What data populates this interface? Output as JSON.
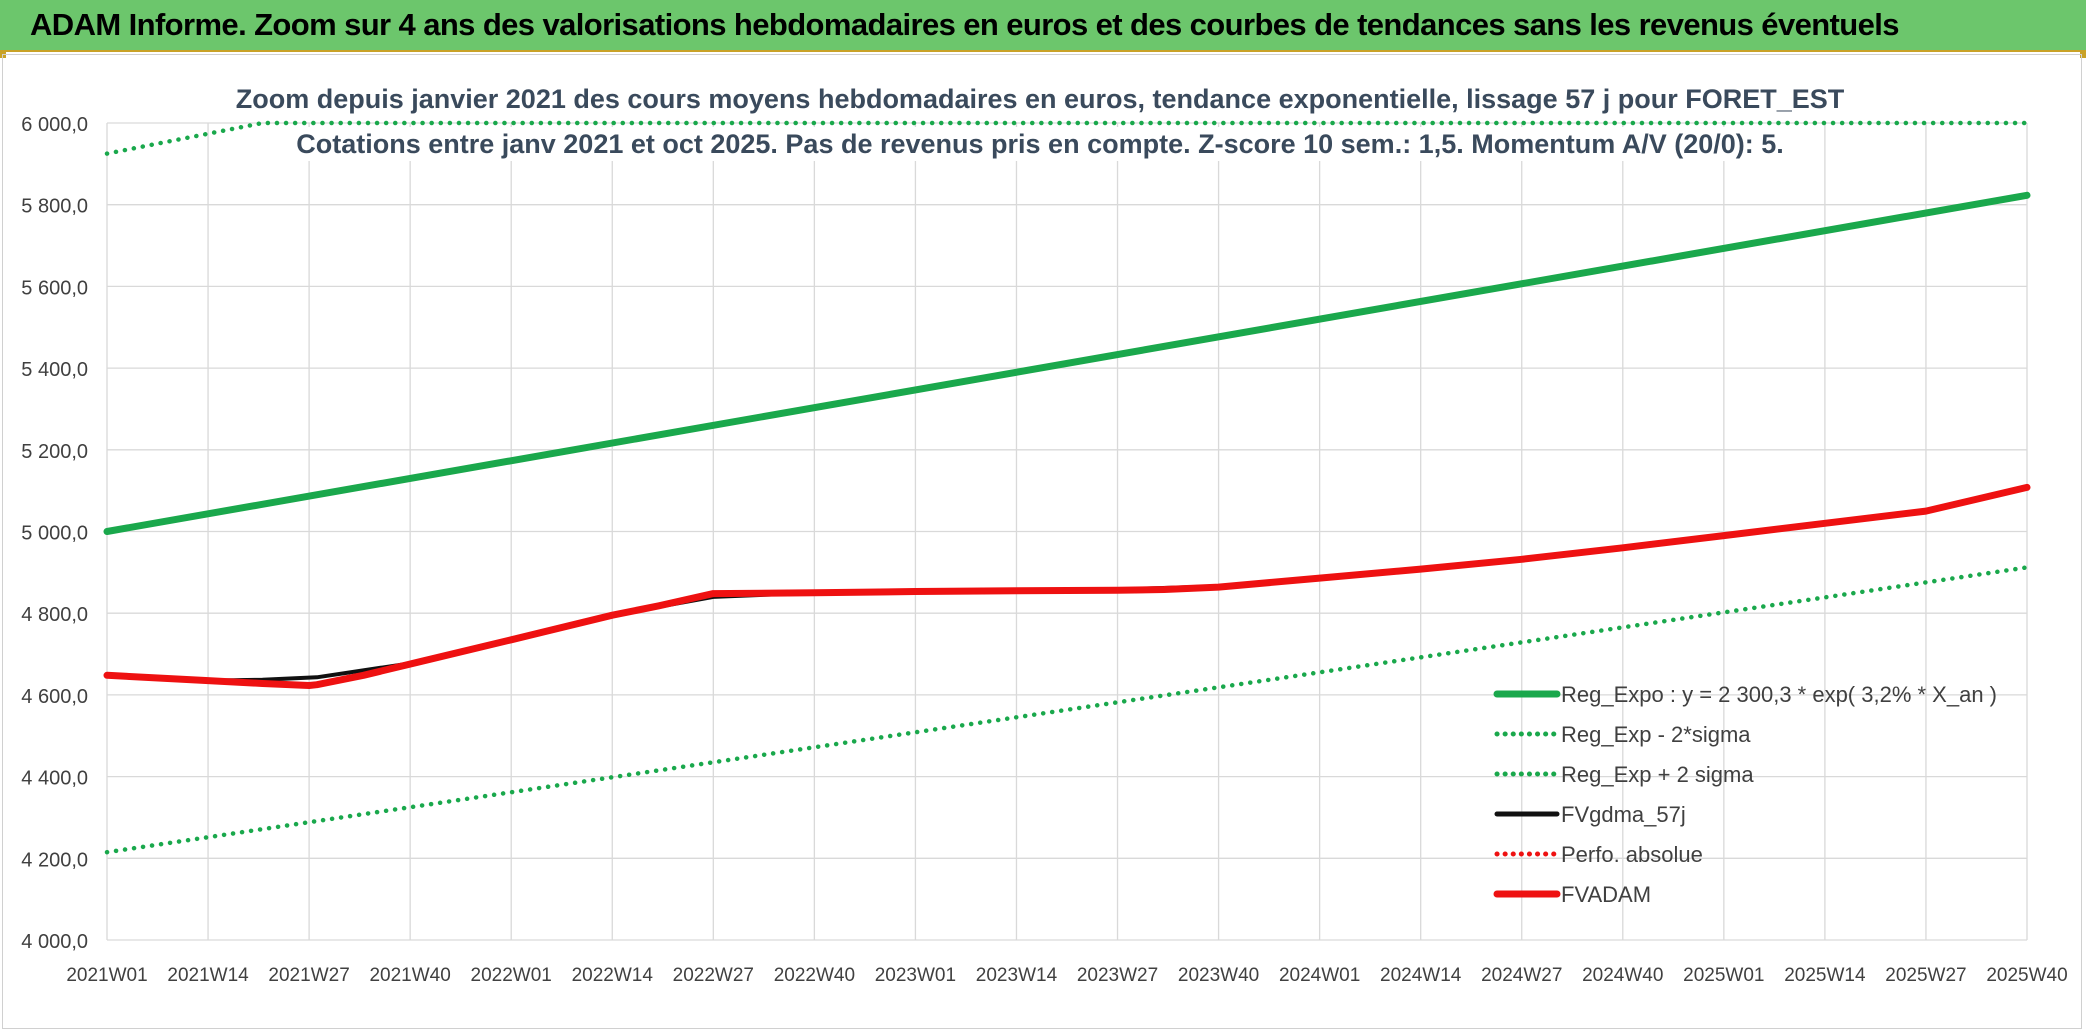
{
  "banner": {
    "title": "ADAM Informe. Zoom sur 4 ans des valorisations hebdomadaires en euros et des courbes de tendances sans les revenus éventuels"
  },
  "colors": {
    "banner_bg": "#6cc66c",
    "green": "#1aa84c",
    "red": "#ee1111",
    "black": "#111111",
    "title_text": "#3a4a5c",
    "grid": "#d9d9d9"
  },
  "chart_data": {
    "type": "line",
    "title_line1": "Zoom depuis janvier 2021 des cours moyens hebdomadaires en euros, tendance exponentielle, lissage 57 j pour FORET_EST",
    "title_line2": "Cotations entre janv 2021 et oct 2025. Pas de revenus pris en compte. Z-score 10 sem.: 1,5. Momentum A/V (20/0): 5.",
    "x_tick_labels": [
      "2021W01",
      "2021W14",
      "2021W27",
      "2021W40",
      "2022W01",
      "2022W14",
      "2022W27",
      "2022W40",
      "2023W01",
      "2023W14",
      "2023W27",
      "2023W40",
      "2024W01",
      "2024W14",
      "2024W27",
      "2024W40",
      "2025W01",
      "2025W14",
      "2025W27",
      "2025W40"
    ],
    "y_tick_labels": [
      "4 000,0",
      "4 200,0",
      "4 400,0",
      "4 600,0",
      "4 800,0",
      "5 000,0",
      "5 200,0",
      "5 400,0",
      "5 600,0",
      "5 800,0",
      "6 000,0"
    ],
    "ylim": [
      4000,
      6000
    ],
    "x_range": [
      0,
      247
    ],
    "grid": true,
    "legend_position": "bottom-right",
    "series": [
      {
        "name": "Reg_Expo : y = 2 300,3 * exp( 3,2% *  X_an )",
        "style": "solid-thick",
        "color": "#1aa84c",
        "points": [
          [
            0,
            5000
          ],
          [
            247,
            5823
          ]
        ]
      },
      {
        "name": "Reg_Exp - 2*sigma",
        "style": "dotted",
        "color": "#1aa84c",
        "points": [
          [
            0,
            4215
          ],
          [
            247,
            4912
          ]
        ]
      },
      {
        "name": "Reg_Exp + 2 sigma",
        "style": "dotted",
        "color": "#1aa84c",
        "points": [
          [
            0,
            5925
          ],
          [
            20,
            6000
          ],
          [
            247,
            6000
          ]
        ]
      },
      {
        "name": "FVgdma_57j",
        "style": "solid",
        "color": "#111111",
        "points": [
          [
            0,
            4648
          ],
          [
            13,
            4635
          ],
          [
            20,
            4637
          ],
          [
            27,
            4643
          ],
          [
            40,
            4680
          ],
          [
            52,
            4735
          ],
          [
            65,
            4795
          ],
          [
            78,
            4840
          ],
          [
            91,
            4850
          ],
          [
            104,
            4853
          ],
          [
            117,
            4855
          ],
          [
            130,
            4858
          ],
          [
            143,
            4866
          ],
          [
            156,
            4886
          ],
          [
            169,
            4908
          ],
          [
            182,
            4932
          ],
          [
            195,
            4960
          ],
          [
            208,
            4990
          ],
          [
            221,
            5020
          ],
          [
            234,
            5050
          ],
          [
            247,
            5105
          ]
        ]
      },
      {
        "name": "Perfo. absolue",
        "style": "dotted",
        "color": "#ee1111",
        "points": []
      },
      {
        "name": "FVADAM",
        "style": "solid-thick",
        "color": "#ee1111",
        "points": [
          [
            0,
            4648
          ],
          [
            13,
            4635
          ],
          [
            20,
            4628
          ],
          [
            26,
            4623
          ],
          [
            27,
            4625
          ],
          [
            33,
            4648
          ],
          [
            40,
            4680
          ],
          [
            52,
            4735
          ],
          [
            65,
            4795
          ],
          [
            71,
            4818
          ],
          [
            78,
            4848
          ],
          [
            91,
            4850
          ],
          [
            104,
            4853
          ],
          [
            117,
            4855
          ],
          [
            130,
            4856
          ],
          [
            136,
            4858
          ],
          [
            143,
            4864
          ],
          [
            156,
            4886
          ],
          [
            169,
            4908
          ],
          [
            182,
            4932
          ],
          [
            195,
            4960
          ],
          [
            208,
            4990
          ],
          [
            221,
            5020
          ],
          [
            234,
            5050
          ],
          [
            247,
            5108
          ]
        ]
      }
    ]
  }
}
